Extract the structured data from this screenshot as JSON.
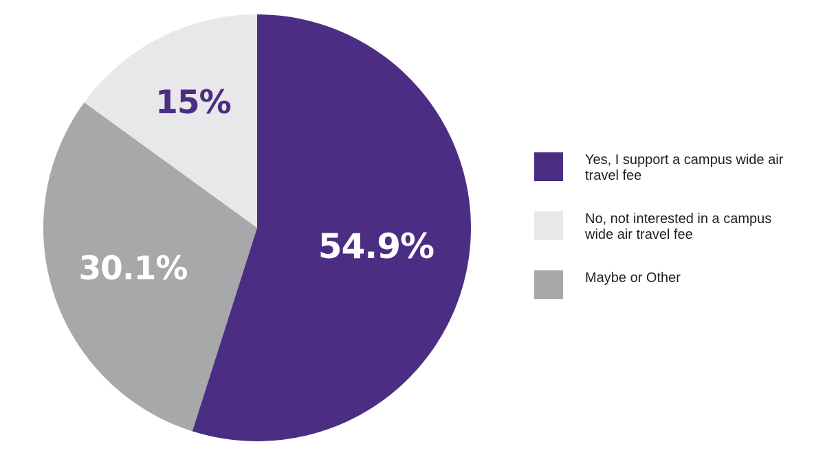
{
  "chart_data": {
    "type": "pie",
    "slices": [
      {
        "label": "Yes, I support a campus wide air travel fee",
        "value": 54.9,
        "display": "54.9%",
        "color": "#4b2e83",
        "label_color": "#ffffff"
      },
      {
        "label": "Maybe or Other",
        "value": 30.1,
        "display": "30.1%",
        "color": "#a7a8aa",
        "label_color": "#ffffff"
      },
      {
        "label": "No, not interested in a campus wide air travel fee",
        "value": 15,
        "display": "15%",
        "color": "#e8e8ea",
        "label_color": "#4b2e83"
      }
    ],
    "start": "12 o'clock",
    "direction": "clockwise",
    "legend_position": "right",
    "legend": [
      {
        "label": "Yes, I support a campus wide air travel fee",
        "color": "#4b2e83"
      },
      {
        "label": "No, not interested in a campus wide air travel fee",
        "color": "#e8e8ea"
      },
      {
        "label": "Maybe or Other",
        "color": "#a7a8aa"
      }
    ]
  }
}
